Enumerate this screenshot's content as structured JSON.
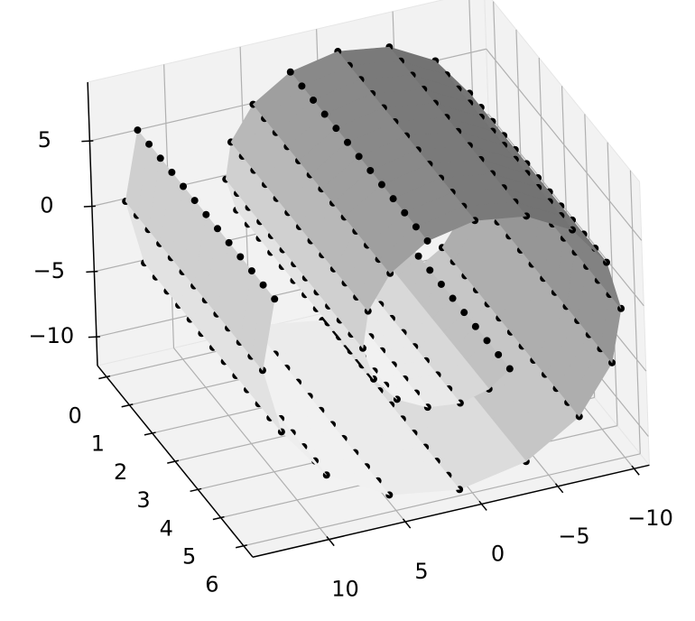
{
  "chart_data": {
    "type": "surface3d",
    "xlim": [
      -11,
      15
    ],
    "ylim": [
      -0.4,
      6.4
    ],
    "zlim": [
      -12.2,
      9.5
    ],
    "xticks": [
      {
        "value": -10,
        "label": "−10"
      },
      {
        "value": -5,
        "label": "−5"
      },
      0,
      5,
      10
    ],
    "yticks": [
      0,
      1,
      2,
      3,
      4,
      5,
      6
    ],
    "zticks": [
      {
        "value": -10,
        "label": "−10"
      },
      {
        "value": -5,
        "label": "−5"
      },
      0,
      5
    ],
    "grid": true,
    "y": [
      0,
      0.5,
      1,
      1.5,
      2,
      2.5,
      3,
      3.5,
      4,
      4.5,
      5,
      5.5,
      6
    ],
    "surface": {
      "color": "#e6e6e6",
      "x": [
        12.43,
        13.37,
        12.28,
        9.45,
        5.41,
        0.83,
        -3.56,
        -7.12,
        -9.37,
        -10.08,
        -9.24,
        -7.09,
        -4.13,
        -0.77,
        2.36,
        4.86,
        6.38,
        6.8,
        6.17,
        4.69,
        2.72,
        0.59,
        -1.31,
        -2.71
      ],
      "z": [
        6.0,
        0.8,
        -4.21,
        -8.28,
        -10.9,
        -11.72,
        -10.77,
        -8.29,
        -4.78,
        -0.82,
        2.94,
        6.01,
        7.87,
        8.44,
        7.72,
        5.92,
        3.44,
        0.71,
        -1.82,
        -3.77,
        -4.91,
        -5.17,
        -4.61,
        -3.44
      ]
    },
    "points": {
      "color": "#000000"
    }
  }
}
